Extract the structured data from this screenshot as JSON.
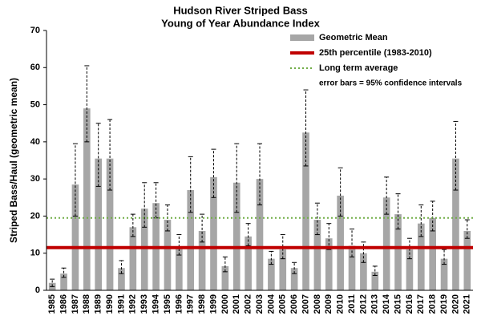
{
  "chart_data": {
    "type": "bar",
    "title": "Hudson River Striped Bass",
    "subtitle": "Young of Year Abundance Index",
    "y_label": "Striped Bass/Haul (geometric mean)",
    "categories": [
      "1985",
      "1986",
      "1987",
      "1988",
      "1989",
      "1990",
      "1991",
      "1992",
      "1993",
      "1994",
      "1995",
      "1996",
      "1997",
      "1998",
      "1999",
      "2000",
      "2001",
      "2002",
      "2003",
      "2004",
      "2005",
      "2006",
      "2007",
      "2008",
      "2009",
      "2010",
      "2011",
      "2012",
      "2013",
      "2014",
      "2015",
      "2016",
      "2017",
      "2018",
      "2019",
      "2020",
      "2021"
    ],
    "series": [
      {
        "name": "Geometric Mean",
        "color": "#a6a6a6",
        "values": [
          2,
          4.5,
          28.5,
          49,
          35.5,
          35.5,
          6,
          17,
          22,
          23.5,
          19,
          11.5,
          27,
          16,
          30.5,
          6.5,
          29,
          14.5,
          30,
          8.5,
          11,
          6,
          42.5,
          19,
          14,
          25.5,
          12,
          10,
          5,
          25,
          20.5,
          11,
          18,
          19.5,
          8.5,
          35.5,
          16
        ],
        "lower": [
          1,
          3.5,
          20,
          40,
          28,
          27,
          4.5,
          14.5,
          17,
          19.5,
          16,
          9.5,
          21,
          13,
          25,
          5,
          21,
          12,
          23,
          7,
          8.5,
          4.5,
          33.5,
          15,
          11,
          20,
          9,
          7.5,
          4,
          20.5,
          16.5,
          8.5,
          14.5,
          16,
          7,
          27,
          14
        ],
        "upper": [
          3,
          6,
          39.5,
          60.5,
          45,
          46,
          8,
          20.5,
          29,
          29,
          23,
          15,
          36,
          20.5,
          38,
          9,
          39.5,
          18,
          39.5,
          10.5,
          15,
          7.5,
          54,
          23.5,
          18,
          33,
          16.5,
          13,
          6.5,
          30.5,
          26,
          14,
          23,
          24,
          11,
          45.5,
          19
        ]
      }
    ],
    "reference_lines": [
      {
        "name": "25th percentile (1983-2010)",
        "value": 11.5,
        "color": "#c00000",
        "style": "solid"
      },
      {
        "name": "Long term average",
        "value": 19.5,
        "color": "#70ad47",
        "style": "dotted"
      }
    ],
    "note": "error bars  = 95%  confidence intervals",
    "ylim": [
      0,
      70
    ],
    "yticks": [
      0,
      10,
      20,
      30,
      40,
      50,
      60,
      70
    ],
    "grid": false
  }
}
